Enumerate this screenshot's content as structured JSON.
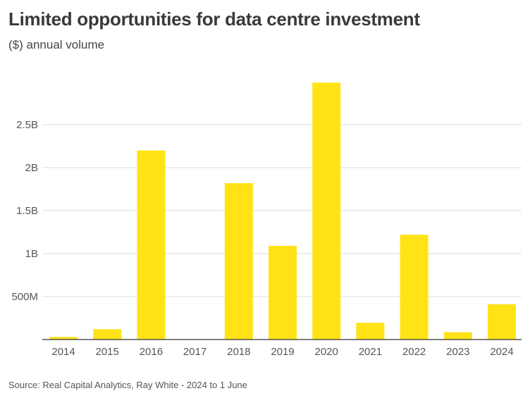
{
  "header": {
    "title": "Limited opportunities for data centre investment",
    "subtitle": "($) annual volume"
  },
  "footer": {
    "source": "Source: Real Capital Analytics, Ray White - 2024 to 1 June"
  },
  "colors": {
    "bar": "#FFE317",
    "grid": "#DDDDDD",
    "axis": "#333333"
  },
  "chart_data": {
    "type": "bar",
    "title": "Limited opportunities for data centre investment",
    "subtitle": "($) annual volume",
    "xlabel": "",
    "ylabel": "",
    "categories": [
      "2014",
      "2015",
      "2016",
      "2017",
      "2018",
      "2019",
      "2020",
      "2021",
      "2022",
      "2023",
      "2024"
    ],
    "values": [
      30000000,
      120000000,
      2200000000,
      0,
      1820000000,
      1090000000,
      2990000000,
      195000000,
      1220000000,
      85000000,
      410000000
    ],
    "ylim": [
      0,
      3000000000
    ],
    "yticks": [
      500000000,
      1000000000,
      1500000000,
      2000000000,
      2500000000
    ],
    "ytick_labels": [
      "500M",
      "1B",
      "1.5B",
      "2B",
      "2.5B"
    ],
    "grid": true,
    "legend": "none"
  }
}
